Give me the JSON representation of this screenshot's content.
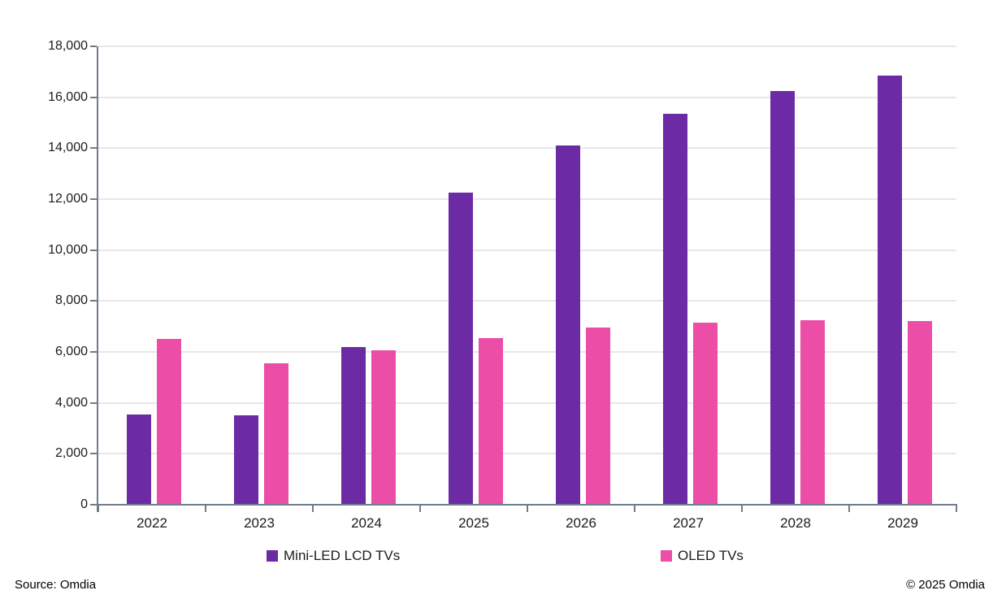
{
  "chart_data": {
    "type": "bar",
    "title": "",
    "categories": [
      "2022",
      "2023",
      "2024",
      "2025",
      "2026",
      "2027",
      "2028",
      "2029"
    ],
    "series": [
      {
        "name": "Mini-LED LCD TVs",
        "color": "#6C2BA4",
        "values": [
          3550,
          3500,
          6200,
          12250,
          14100,
          15350,
          16250,
          16850
        ]
      },
      {
        "name": "OLED TVs",
        "color": "#EC4DA6",
        "values": [
          6500,
          5550,
          6050,
          6550,
          6950,
          7150,
          7250,
          7200
        ]
      }
    ],
    "xlabel": "",
    "ylabel": "",
    "ylim": [
      0,
      18000
    ],
    "ytick_interval": 2000,
    "ytick_labels": [
      "0",
      "2,000",
      "4,000",
      "6,000",
      "8,000",
      "10,000",
      "12,000",
      "14,000",
      "16,000",
      "18,000"
    ],
    "grid": true,
    "legend_position": "bottom"
  },
  "footer": {
    "source": "Source: Omdia",
    "copyright": "© 2025 Omdia"
  },
  "colors": {
    "axis": "#707C8C",
    "gridline": "#E7E7E7",
    "text": "#1C1C1C"
  }
}
